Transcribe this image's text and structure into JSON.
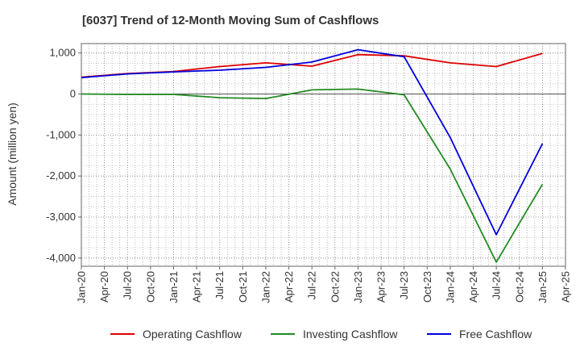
{
  "chart_data": {
    "type": "line",
    "title": "[6037]  Trend of 12-Month Moving Sum of Cashflows",
    "xlabel": "",
    "ylabel": "Amount (million yen)",
    "x_tick_labels": [
      "Jan-20",
      "Apr-20",
      "Jul-20",
      "Oct-20",
      "Jan-21",
      "Apr-21",
      "Jul-21",
      "Oct-21",
      "Jan-22",
      "Apr-22",
      "Jul-22",
      "Oct-22",
      "Jan-23",
      "Apr-23",
      "Jul-23",
      "Oct-23",
      "Jan-24",
      "Apr-24",
      "Jul-24",
      "Oct-24",
      "Jan-25",
      "Apr-25"
    ],
    "y_tick_values": [
      1000,
      0,
      -1000,
      -2000,
      -3000,
      -4000
    ],
    "y_tick_labels": [
      "1,000",
      "0",
      "-1,000",
      "-2,000",
      "-3,000",
      "-4,000"
    ],
    "ylim": [
      -4200,
      1230
    ],
    "grid": true,
    "legend_position": "bottom",
    "series": [
      {
        "name": "Operating Cashflow",
        "color": "#e00000",
        "points": [
          [
            "Jan-20",
            410
          ],
          [
            "Jul-20",
            500
          ],
          [
            "Jan-21",
            550
          ],
          [
            "Jul-21",
            670
          ],
          [
            "Jan-22",
            760
          ],
          [
            "Jul-22",
            680
          ],
          [
            "Jan-23",
            960
          ],
          [
            "Jul-23",
            930
          ],
          [
            "Jan-24",
            760
          ],
          [
            "Jul-24",
            670
          ],
          [
            "Jan-25",
            990
          ]
        ]
      },
      {
        "name": "Investing Cashflow",
        "color": "#228b22",
        "points": [
          [
            "Jan-20",
            0
          ],
          [
            "Jul-20",
            -10
          ],
          [
            "Jan-21",
            -10
          ],
          [
            "Jul-21",
            -90
          ],
          [
            "Jan-22",
            -110
          ],
          [
            "Jul-22",
            100
          ],
          [
            "Jan-23",
            120
          ],
          [
            "Jul-23",
            -20
          ],
          [
            "Jan-24",
            -1830
          ],
          [
            "Jul-24",
            -4100
          ],
          [
            "Jan-25",
            -2200
          ]
        ]
      },
      {
        "name": "Free Cashflow",
        "color": "#0000dd",
        "points": [
          [
            "Jan-20",
            400
          ],
          [
            "Jul-20",
            490
          ],
          [
            "Jan-21",
            540
          ],
          [
            "Jul-21",
            580
          ],
          [
            "Jan-22",
            650
          ],
          [
            "Jul-22",
            780
          ],
          [
            "Jan-23",
            1080
          ],
          [
            "Jul-23",
            910
          ],
          [
            "Jan-24",
            -1060
          ],
          [
            "Jul-24",
            -3430
          ],
          [
            "Jan-25",
            -1210
          ]
        ]
      }
    ]
  }
}
